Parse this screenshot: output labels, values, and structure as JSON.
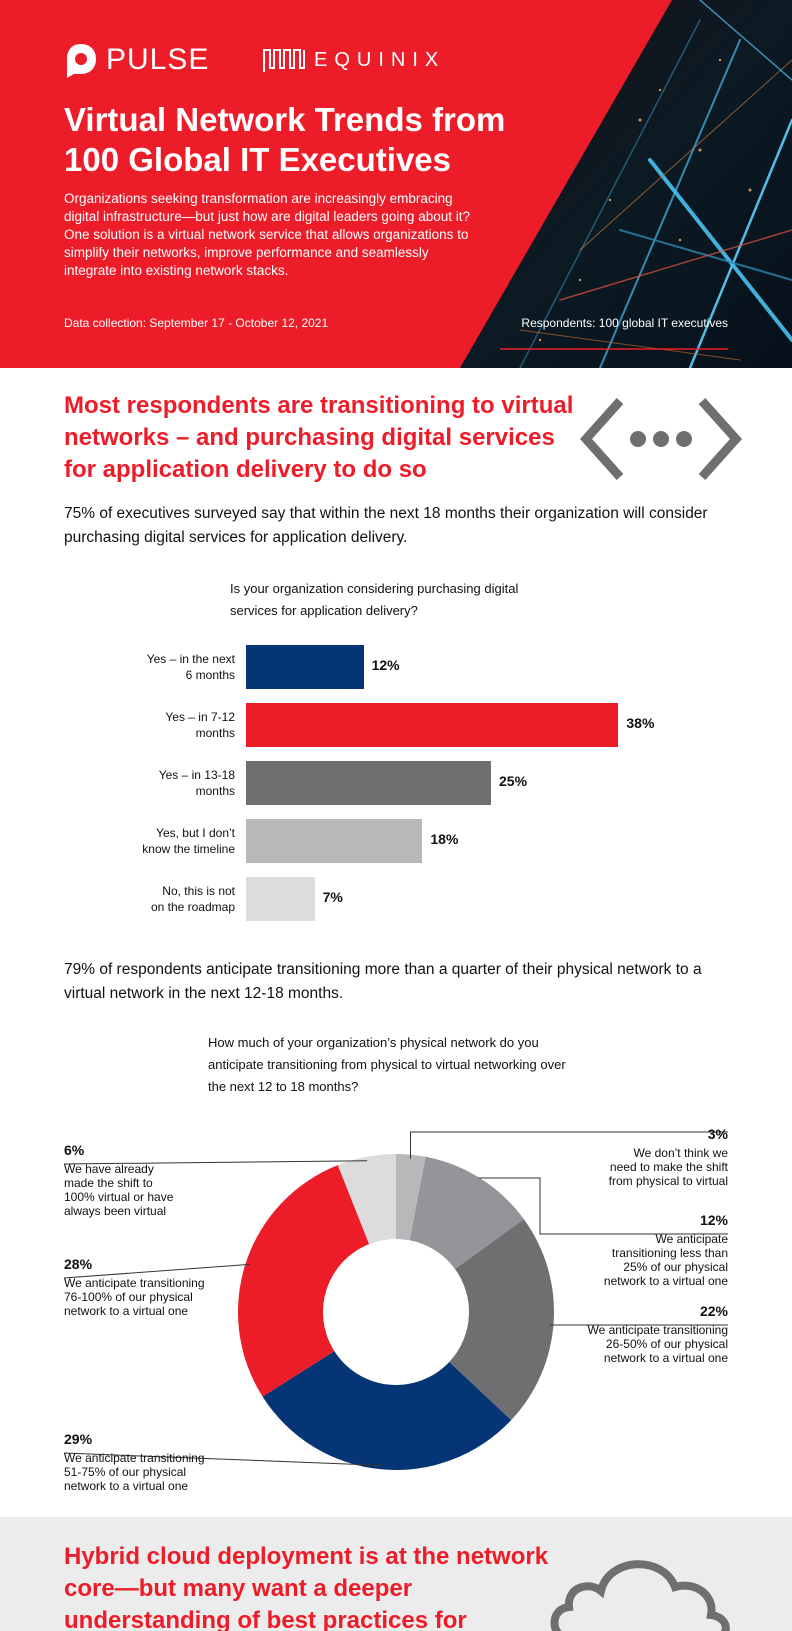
{
  "header": {
    "pulse_logo": "PULSE",
    "equinix_logo": "EQUINIX",
    "title_line1": "Virtual Network Trends from",
    "title_line2": "100 Global IT Executives",
    "description": "Organizations seeking transformation are increasingly embracing digital infrastructure—but just how are digital leaders going about it? One solution is a virtual network service that allows organizations to simplify their networks, improve performance and seamlessly integrate into existing network stacks.",
    "data_collection": "Data collection: September 17 - October 12, 2021",
    "respondents": "Respondents: 100 global IT executives"
  },
  "section1": {
    "title": "Most respondents are transitioning to virtual networks – and purchasing digital services for application delivery to do so",
    "intro": "75% of executives surveyed say that within the next 18 months their organization will consider purchasing digital services for application delivery.",
    "question": "Is your organization considering purchasing digital services for application delivery?",
    "intro2": "79% of respondents anticipate transitioning more than a quarter of their physical network to a virtual network in the next 12-18 months.",
    "question2": "How much of your organization’s physical network do you anticipate transitioning from physical to virtual networking over the next 12 to 18 months?"
  },
  "section2": {
    "title": "Hybrid cloud deployment is at the network core—but many want a deeper understanding of best practices for"
  },
  "chart_data": [
    {
      "type": "bar",
      "orientation": "horizontal",
      "title": "Is your organization considering purchasing digital services for application delivery?",
      "categories": [
        "Yes – in the next 6 months",
        "Yes – in 7-12 months",
        "Yes – in 13-18 months",
        "Yes, but I don’t know the timeline",
        "No, this is not on the roadmap"
      ],
      "category_lines": [
        [
          "Yes – in the next",
          "6 months"
        ],
        [
          "Yes – in 7-12",
          "months"
        ],
        [
          "Yes – in 13-18",
          "months"
        ],
        [
          "Yes, but I don’t",
          "know the timeline"
        ],
        [
          "No, this is not",
          "on the roadmap"
        ]
      ],
      "values": [
        12,
        38,
        25,
        18,
        7
      ],
      "labels": [
        "12%",
        "38%",
        "25%",
        "18%",
        "7%"
      ],
      "colors": [
        "#053574",
        "#ed1c29",
        "#6f6f71",
        "#b8b8ba",
        "#dcdcdd"
      ]
    },
    {
      "type": "pie",
      "subtype": "donut",
      "title": "How much of your organization’s physical network do you anticipate transitioning from physical to virtual networking over the next 12 to 18 months?",
      "slices": [
        {
          "label": "We don’t think we need to make the shift from physical to virtual",
          "value": 3,
          "pct": "3%",
          "color": "#b8b8ba"
        },
        {
          "label": "We anticipate transitioning less than 25% of our physical network to a virtual one",
          "value": 12,
          "pct": "12%",
          "color": "#939598"
        },
        {
          "label": "We anticipate transitioning 26-50% of our physical network to a virtual one",
          "value": 22,
          "pct": "22%",
          "color": "#6f6f71"
        },
        {
          "label": "We anticipate transitioning 51-75% of our physical network to a virtual one",
          "value": 29,
          "pct": "29%",
          "color": "#053574"
        },
        {
          "label": "We anticipate transitioning 76-100% of our physical network to a virtual one",
          "value": 28,
          "pct": "28%",
          "color": "#ed1c29"
        },
        {
          "label": "We have already made the shift to 100% virtual or have always been virtual",
          "value": 6,
          "pct": "6%",
          "color": "#dcdcdd"
        }
      ],
      "annotation_lines": [
        [
          "We don’t think we",
          "need to make the shift",
          "from physical to virtual"
        ],
        [
          "We anticipate",
          "transitioning  less than",
          "25% of our physical",
          "network to a virtual one"
        ],
        [
          "We anticipate transitioning",
          "26-50% of our physical",
          "network to a virtual one"
        ],
        [
          "We anticipate transitioning",
          "51-75% of our physical",
          "network to a virtual one"
        ],
        [
          "We anticipate transitioning",
          "76-100% of our physical",
          "network to a virtual one"
        ],
        [
          "We have already",
          "made the shift to",
          "100% virtual or have",
          "always been virtual"
        ]
      ]
    }
  ]
}
